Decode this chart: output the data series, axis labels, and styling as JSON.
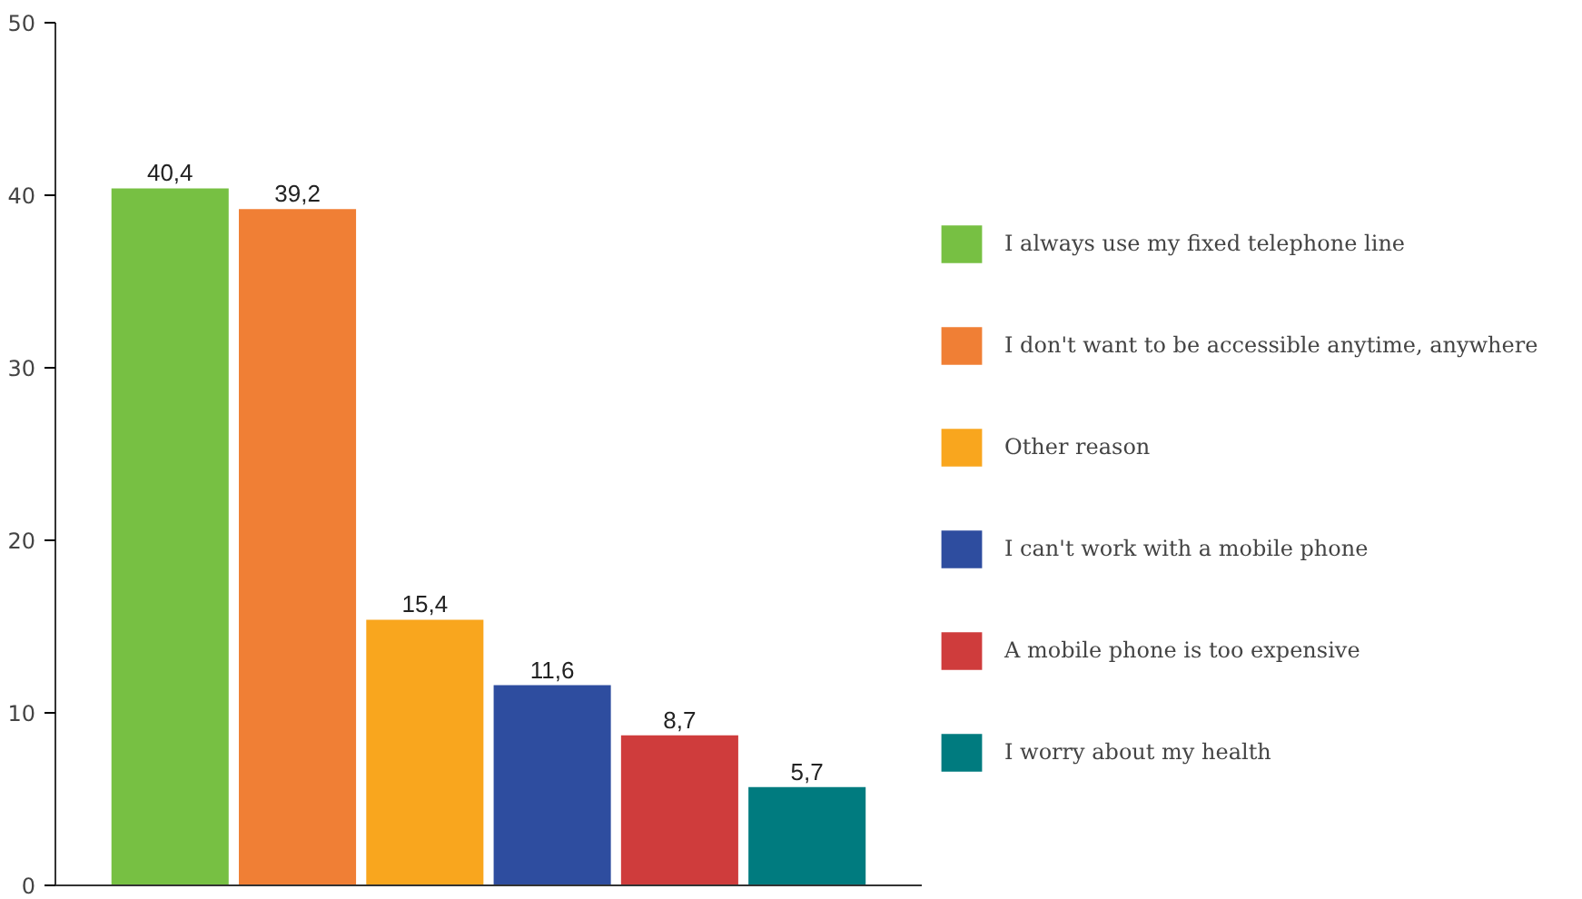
{
  "chart_data": {
    "type": "bar",
    "categories": [
      null,
      null,
      null,
      null,
      null,
      null
    ],
    "series": [
      {
        "name": "I always use my fixed telephone line",
        "color": "#77c043",
        "values": [
          40.4,
          null,
          null,
          null,
          null,
          null
        ],
        "value_labels": [
          "40,4",
          null,
          null,
          null,
          null,
          null
        ]
      },
      {
        "name": "I don't want to be accessible anytime, anywhere",
        "color": "#f07f35",
        "values": [
          null,
          39.2,
          null,
          null,
          null,
          null
        ],
        "value_labels": [
          null,
          "39,2",
          null,
          null,
          null,
          null
        ]
      },
      {
        "name": "Other reason",
        "color": "#f9a61e",
        "values": [
          null,
          null,
          15.4,
          null,
          null,
          null
        ],
        "value_labels": [
          null,
          null,
          "15,4",
          null,
          null,
          null
        ]
      },
      {
        "name": "I can't work with a mobile phone",
        "color": "#2e4d9f",
        "values": [
          null,
          null,
          null,
          11.6,
          null,
          null
        ],
        "value_labels": [
          null,
          null,
          null,
          "11,6",
          null,
          null
        ]
      },
      {
        "name": "A mobile phone is too expensive",
        "color": "#cf3c3c",
        "values": [
          null,
          null,
          null,
          null,
          8.7,
          null
        ],
        "value_labels": [
          null,
          null,
          null,
          null,
          "8,7",
          null
        ]
      },
      {
        "name": "I worry about my health",
        "color": "#007b7f",
        "values": [
          null,
          null,
          null,
          null,
          null,
          5.7
        ],
        "value_labels": [
          null,
          null,
          null,
          null,
          null,
          "5,7"
        ]
      }
    ],
    "ylim": [
      0,
      50
    ],
    "yticks": [
      0,
      10,
      20,
      30,
      40,
      50
    ],
    "grid": false,
    "legend": "right"
  }
}
